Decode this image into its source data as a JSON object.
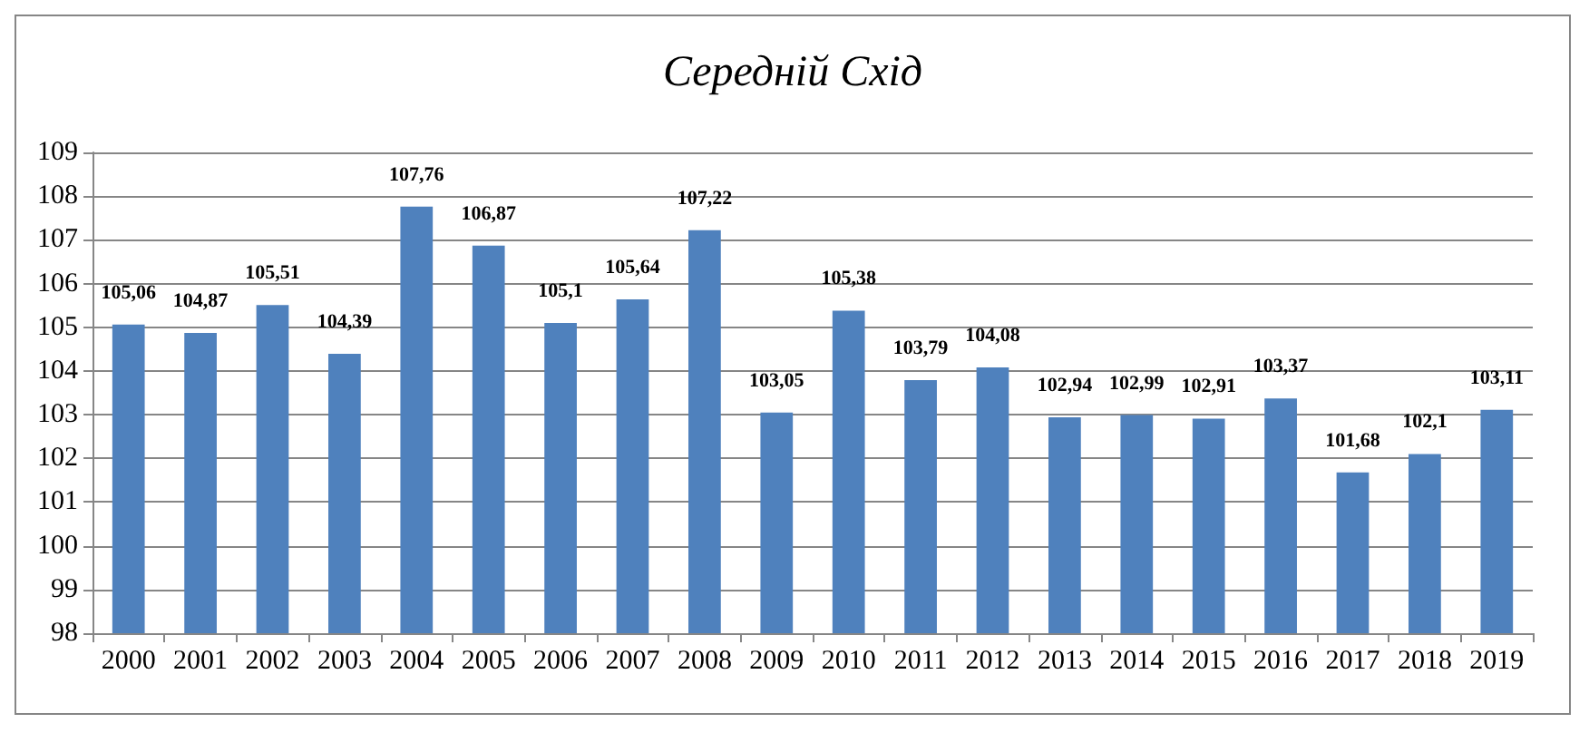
{
  "chart_data": {
    "type": "bar",
    "title": "Середній Схід",
    "categories": [
      "2000",
      "2001",
      "2002",
      "2003",
      "2004",
      "2005",
      "2006",
      "2007",
      "2008",
      "2009",
      "2010",
      "2011",
      "2012",
      "2013",
      "2014",
      "2015",
      "2016",
      "2017",
      "2018",
      "2019"
    ],
    "values": [
      105.06,
      104.87,
      105.51,
      104.39,
      107.76,
      106.87,
      105.1,
      105.64,
      107.22,
      103.05,
      105.38,
      103.79,
      104.08,
      102.94,
      102.99,
      102.91,
      103.37,
      101.68,
      102.1,
      103.11
    ],
    "value_labels": [
      "105,06",
      "104,87",
      "105,51",
      "104,39",
      "107,76",
      "106,87",
      "105,1",
      "105,64",
      "107,22",
      "103,05",
      "105,38",
      "103,79",
      "104,08",
      "102,94",
      "102,99",
      "102,91",
      "103,37",
      "101,68",
      "102,1",
      "103,11"
    ],
    "color": "#4f81bd",
    "ylim": [
      98,
      109
    ],
    "yticks": [
      98,
      99,
      100,
      101,
      102,
      103,
      104,
      105,
      106,
      107,
      108,
      109
    ],
    "grid": "y"
  }
}
